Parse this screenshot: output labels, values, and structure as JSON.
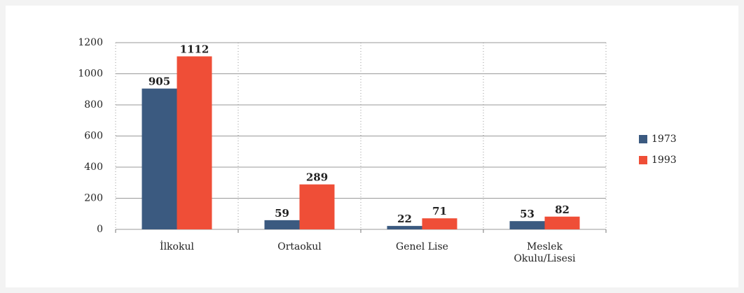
{
  "chart_data": {
    "type": "bar",
    "categories": [
      "İlkokul",
      "Ortaokul",
      "Genel Lise",
      "Meslek Okulu/Lisesi"
    ],
    "series": [
      {
        "name": "1973",
        "color": "#3b5a80",
        "values": [
          905,
          59,
          22,
          53
        ]
      },
      {
        "name": "1993",
        "color": "#ef4e37",
        "values": [
          1112,
          289,
          71,
          82
        ]
      }
    ],
    "ylim": [
      0,
      1200
    ],
    "yticks": [
      0,
      200,
      400,
      600,
      800,
      1000,
      1200
    ],
    "grid": true,
    "legend": "right"
  }
}
